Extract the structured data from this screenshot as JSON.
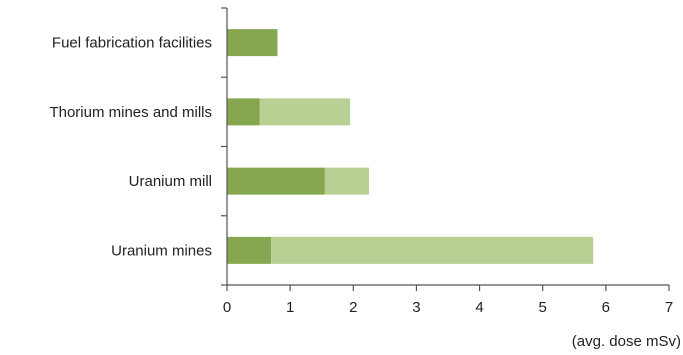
{
  "chart_data": {
    "type": "bar",
    "orientation": "horizontal",
    "stacked": true,
    "categories": [
      "Fuel fabrication facilities",
      "Thorium mines and mills",
      "Uranium mill",
      "Uranium mines"
    ],
    "series": [
      {
        "values": [
          0.8,
          0.52,
          1.55,
          0.7
        ],
        "color": "#86a750"
      },
      {
        "values": [
          0,
          1.43,
          0.7,
          5.1
        ],
        "color": "#b9d095"
      }
    ],
    "x_ticks": [
      "0",
      "1",
      "2",
      "3",
      "4",
      "5",
      "6",
      "7"
    ],
    "xlim": [
      0,
      7
    ],
    "xlabel": "(avg. dose  mSv)",
    "grid": false,
    "legend": "none"
  }
}
